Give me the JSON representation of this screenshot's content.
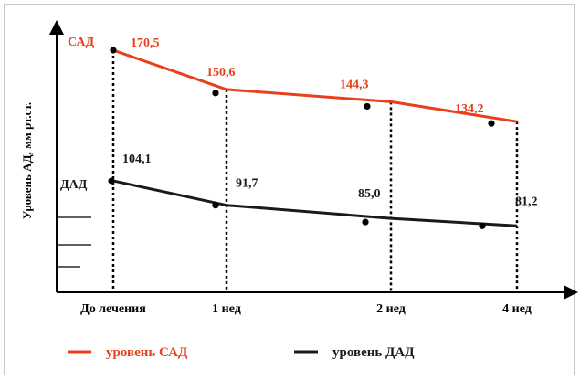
{
  "chart_data": {
    "type": "line",
    "ylabel": "Уровень АД, мм рт.ст.",
    "categories": [
      "До лечения",
      "1 нед",
      "2 нед",
      "4 нед"
    ],
    "series": [
      {
        "name": "уровень САД",
        "short_label": "САД",
        "color": "#e8401c",
        "values": [
          170.5,
          150.6,
          144.3,
          134.2
        ],
        "value_labels": [
          "170,5",
          "150,6",
          "144,3",
          "134,2"
        ]
      },
      {
        "name": "уровень ДАД",
        "short_label": "ДАД",
        "color": "#1a1a1a",
        "values": [
          104.1,
          91.7,
          85.0,
          81.2
        ],
        "value_labels": [
          "104,1",
          "91,7",
          "85,0",
          "81,2"
        ]
      }
    ],
    "grid": false,
    "legend_position": "bottom"
  }
}
